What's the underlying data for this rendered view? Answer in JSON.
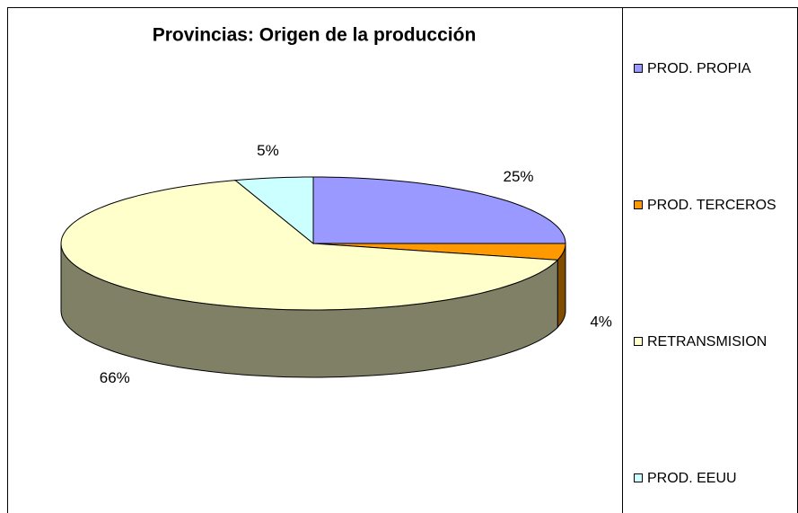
{
  "chart_data": {
    "type": "pie",
    "title": "Provincias: Origen de la producción",
    "categories": [
      "PROD. PROPIA",
      "PROD. TERCEROS",
      "RETRANSMISION",
      "PROD. EEUU"
    ],
    "values": [
      25,
      4,
      66,
      5
    ],
    "value_labels": [
      "25%",
      "4%",
      "66%",
      "5%"
    ],
    "colors": [
      "#9999ff",
      "#ff9900",
      "#ffffcc",
      "#ccffff"
    ],
    "legend": "right"
  }
}
